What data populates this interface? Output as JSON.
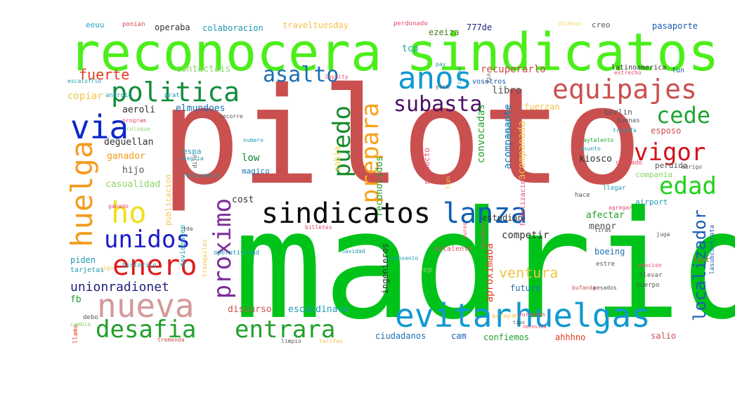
{
  "words": [
    {
      "text": "piloto",
      "color": "#c9504f"
    },
    {
      "text": "madrid",
      "color": "#00c31a"
    },
    {
      "text": "reconocera",
      "color": "#4cee1a"
    },
    {
      "text": "sindicatos",
      "color": "#4cee1a"
    },
    {
      "text": "anos",
      "color": "#1198d4"
    },
    {
      "text": "politica",
      "color": "#128c3a"
    },
    {
      "text": "equipajes",
      "color": "#c9504f"
    },
    {
      "text": "via",
      "color": "#0c28c9"
    },
    {
      "text": "ho",
      "color": "#f1e01a"
    },
    {
      "text": "huelga",
      "color": "#f39c1d"
    },
    {
      "text": "sindicatos",
      "color": "#0b0b0b"
    },
    {
      "text": "lanza",
      "color": "#0c5fb6"
    },
    {
      "text": "evitar",
      "color": "#1199d2"
    },
    {
      "text": "huelgas",
      "color": "#1199d2"
    },
    {
      "text": "nueva",
      "color": "#d39a9a"
    },
    {
      "text": "enero",
      "color": "#e01b1b"
    },
    {
      "text": "unidos",
      "color": "#1a1bc9"
    },
    {
      "text": "desafia",
      "color": "#20a02b"
    },
    {
      "text": "entrara",
      "color": "#20a02b"
    },
    {
      "text": "asalto",
      "color": "#1c6fb1"
    },
    {
      "text": "subasta",
      "color": "#4a1063"
    },
    {
      "text": "prepara",
      "color": "#f7a21b"
    },
    {
      "text": "puedo",
      "color": "#158b2a"
    },
    {
      "text": "proximo",
      "color": "#7d2c9b"
    },
    {
      "text": "cede",
      "color": "#1fa52f"
    },
    {
      "text": "vigor",
      "color": "#d4111a"
    },
    {
      "text": "edad",
      "color": "#1fd11a"
    },
    {
      "text": "localizador",
      "color": "#1a5bb6"
    },
    {
      "text": "fuerte",
      "color": "#e23b1b"
    },
    {
      "text": "unionradionet",
      "color": "#22237c"
    },
    {
      "text": "eeuu",
      "color": "#20a3c6"
    },
    {
      "text": "ponian",
      "color": "#d9484d"
    },
    {
      "text": "operaba",
      "color": "#333333"
    },
    {
      "text": "colaboracion",
      "color": "#1c9bb1"
    },
    {
      "text": "traveltuesday",
      "color": "#f3c24a"
    },
    {
      "text": "perdonado",
      "color": "#e34a6b"
    },
    {
      "text": "dichoso",
      "color": "#f3d54a"
    },
    {
      "text": "creo",
      "color": "#555555"
    },
    {
      "text": "pasaporte",
      "color": "#1a5bb6"
    },
    {
      "text": "ezeiza",
      "color": "#4c7a1a"
    },
    {
      "text": "777de",
      "color": "#22237c"
    },
    {
      "text": "tcp",
      "color": "#1c9bb1"
    },
    {
      "text": "contactais",
      "color": "#8dd46b"
    },
    {
      "text": "recuperarlo",
      "color": "#c9504f"
    },
    {
      "text": "latinoamerica",
      "color": "#333333"
    },
    {
      "text": "fun",
      "color": "#1a5bb6"
    },
    {
      "text": "copiar",
      "color": "#f3c24a"
    },
    {
      "text": "libro",
      "color": "#555555"
    },
    {
      "text": "aeroli",
      "color": "#333333"
    },
    {
      "text": "elmundoes",
      "color": "#1c6fb1"
    },
    {
      "text": "fuerzan",
      "color": "#f3c24a"
    },
    {
      "text": "deguellan",
      "color": "#333333"
    },
    {
      "text": "ganador",
      "color": "#f39c1d"
    },
    {
      "text": "hijo",
      "color": "#555555"
    },
    {
      "text": "casualidad",
      "color": "#8dd46b"
    },
    {
      "text": "low",
      "color": "#128c3a"
    },
    {
      "text": "magico",
      "color": "#1c6fb1"
    },
    {
      "text": "espa",
      "color": "#1c9bb1"
    },
    {
      "text": "cost",
      "color": "#333333"
    },
    {
      "text": "convocadas",
      "color": "#20a02b"
    },
    {
      "text": "acompanante",
      "color": "#1c6fb1"
    },
    {
      "text": "acompanada",
      "color": "#f3c24a"
    },
    {
      "text": "kiosco",
      "color": "#333333"
    },
    {
      "text": "esposo",
      "color": "#c9504f"
    },
    {
      "text": "berlin",
      "color": "#555555"
    },
    {
      "text": "buenas",
      "color": "#555555"
    },
    {
      "text": "perdido",
      "color": "#555555"
    },
    {
      "text": "compania",
      "color": "#8dd46b"
    },
    {
      "text": "airport",
      "color": "#1c9bb1"
    },
    {
      "text": "estudian",
      "color": "#333333"
    },
    {
      "text": "afectar",
      "color": "#20a02b"
    },
    {
      "text": "menor",
      "color": "#555555"
    },
    {
      "text": "competir",
      "color": "#333333"
    },
    {
      "text": "ventura",
      "color": "#f3c24a"
    },
    {
      "text": "futuro",
      "color": "#1c6fb1"
    },
    {
      "text": "piden",
      "color": "#1c9bb1"
    },
    {
      "text": "fb",
      "color": "#20a02b"
    },
    {
      "text": "discurso",
      "color": "#c9504f"
    },
    {
      "text": "escandinava",
      "color": "#1c9bb1"
    },
    {
      "text": "ciudadanos",
      "color": "#1c6fb1"
    },
    {
      "text": "cam",
      "color": "#1a5bb6"
    },
    {
      "text": "confiemos",
      "color": "#20a02b"
    },
    {
      "text": "ahhhno",
      "color": "#e23b1b"
    },
    {
      "text": "salio",
      "color": "#c9504f"
    },
    {
      "text": "ep",
      "color": "#8dd46b"
    },
    {
      "text": "boeing",
      "color": "#1c6fb1"
    },
    {
      "text": "fact",
      "color": "#c9504f"
    },
    {
      "text": "aitalento",
      "color": "#e34a6b"
    },
    {
      "text": "ingenieros",
      "color": "#333333"
    },
    {
      "text": "aproximaba",
      "color": "#e23b1b"
    },
    {
      "text": "reconocidos",
      "color": "#20a02b"
    },
    {
      "text": "respecto",
      "color": "#e34a6b"
    },
    {
      "text": "sabia",
      "color": "#f3d54a"
    },
    {
      "text": "tarjetas",
      "color": "#1c9bb1"
    },
    {
      "text": "historico",
      "color": "#1c9bb1"
    },
    {
      "text": "davidpagep",
      "color": "#1c9bb1"
    },
    {
      "text": "operatividad",
      "color": "#1c9bb1"
    },
    {
      "text": "publicacion",
      "color": "#f3c24a"
    },
    {
      "text": "ida",
      "color": "#555555"
    },
    {
      "text": "llama",
      "color": "#e23b1b"
    },
    {
      "text": "debo",
      "color": "#555555"
    },
    {
      "text": "cambia",
      "color": "#8dd46b"
    },
    {
      "text": "vigo",
      "color": "#f3c24a"
    },
    {
      "text": "tremenda",
      "color": "#c9504f"
    },
    {
      "text": "limpio",
      "color": "#555555"
    },
    {
      "text": "tarifas",
      "color": "#f3c24a"
    },
    {
      "text": "cuerpo",
      "color": "#555555"
    },
    {
      "text": "pesados",
      "color": "#555555"
    },
    {
      "text": "llevar",
      "color": "#555555"
    },
    {
      "text": "estre",
      "color": "#555555"
    },
    {
      "text": "emocion",
      "color": "#e34a6b"
    },
    {
      "text": "arrayan",
      "color": "#f3c24a"
    },
    {
      "text": "lasubcontrata",
      "color": "#1a5bb6"
    },
    {
      "text": "bufanda",
      "color": "#c9504f"
    },
    {
      "text": "billetes",
      "color": "#e34a6b"
    },
    {
      "text": "tiras",
      "color": "#555555"
    },
    {
      "text": "navidad",
      "color": "#1c9bb1"
    },
    {
      "text": "piensenlo",
      "color": "#1c9bb1"
    },
    {
      "text": "tranquilos",
      "color": "#f3c24a"
    },
    {
      "text": "vosotros",
      "color": "#1a5bb6"
    },
    {
      "text": "york",
      "color": "#555555"
    },
    {
      "text": "compa",
      "color": "#1c9bb1"
    },
    {
      "text": "pay",
      "color": "#1c9bb1"
    },
    {
      "text": "loyalty",
      "color": "#e34a6b"
    },
    {
      "text": "prat",
      "color": "#1c9bb1"
    },
    {
      "text": "desventaja",
      "color": "#1c9bb1"
    },
    {
      "text": "android",
      "color": "#1c9bb1"
    },
    {
      "text": "escalofrio",
      "color": "#1c9bb1"
    },
    {
      "text": "program",
      "color": "#e34a6b"
    },
    {
      "text": "coloque",
      "color": "#8dd46b"
    },
    {
      "text": "ganado",
      "color": "#e34a6b"
    },
    {
      "text": "recorre",
      "color": "#555555"
    },
    {
      "text": "numero",
      "color": "#1c9bb1"
    },
    {
      "text": "alegria",
      "color": "#1c9bb1"
    },
    {
      "text": "dijo",
      "color": "#555555"
    },
    {
      "text": "funcionario",
      "color": "#1c9bb1"
    },
    {
      "text": "tips",
      "color": "#f3c24a"
    },
    {
      "text": "fidelizacion",
      "color": "#e34a6b"
    },
    {
      "text": "aytalento",
      "color": "#1fa52f"
    },
    {
      "text": "asunto",
      "color": "#1c9bb1"
    },
    {
      "text": "triunfa",
      "color": "#1c9bb1"
    },
    {
      "text": "estrecho",
      "color": "#e34a6b"
    },
    {
      "text": "calzado",
      "color": "#e34a6b"
    },
    {
      "text": "llegar",
      "color": "#1c9bb1"
    },
    {
      "text": "hace",
      "color": "#555555"
    },
    {
      "text": "agregar",
      "color": "#e34a6b"
    },
    {
      "text": "abrigo",
      "color": "#555555"
    },
    {
      "text": "euros",
      "color": "#e34a6b"
    },
    {
      "text": "novedoso",
      "color": "#e34a6b"
    },
    {
      "text": "juga",
      "color": "#555555"
    },
    {
      "text": "europeos",
      "color": "#e34a6b"
    },
    {
      "text": "tipo",
      "color": "#555555"
    },
    {
      "text": "necesita",
      "color": "#e34a6b"
    },
    {
      "text": "fin",
      "color": "#555555"
    },
    {
      "text": "instan",
      "color": "#555555"
    }
  ]
}
